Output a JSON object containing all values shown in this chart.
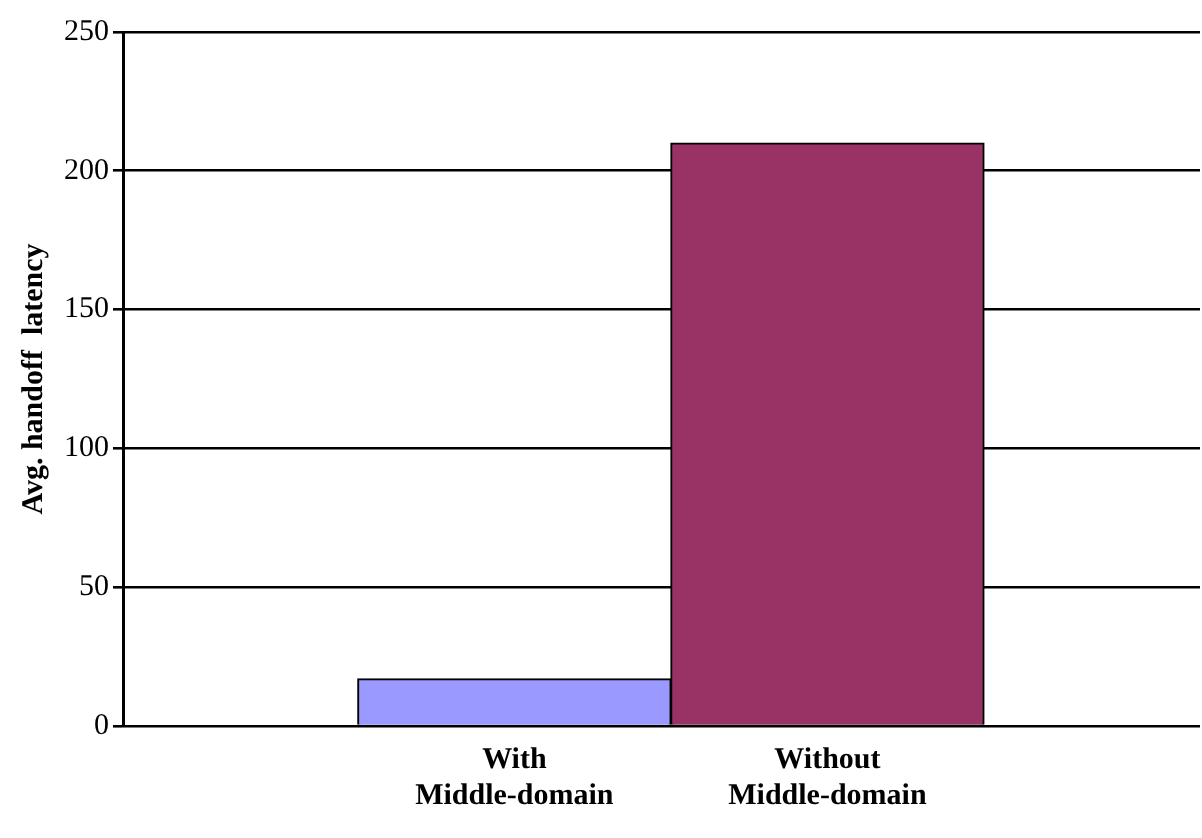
{
  "chart_data": {
    "type": "bar",
    "ylabel": "Avg. handoff  latency",
    "categories": [
      "With Middle-domain",
      "Without Middle-domain"
    ],
    "values": [
      17,
      210
    ],
    "colors": [
      "#9999ff",
      "#993366"
    ],
    "ylim": [
      0,
      250
    ],
    "yticks": [
      0,
      50,
      100,
      150,
      200,
      250
    ],
    "grid": "y"
  }
}
